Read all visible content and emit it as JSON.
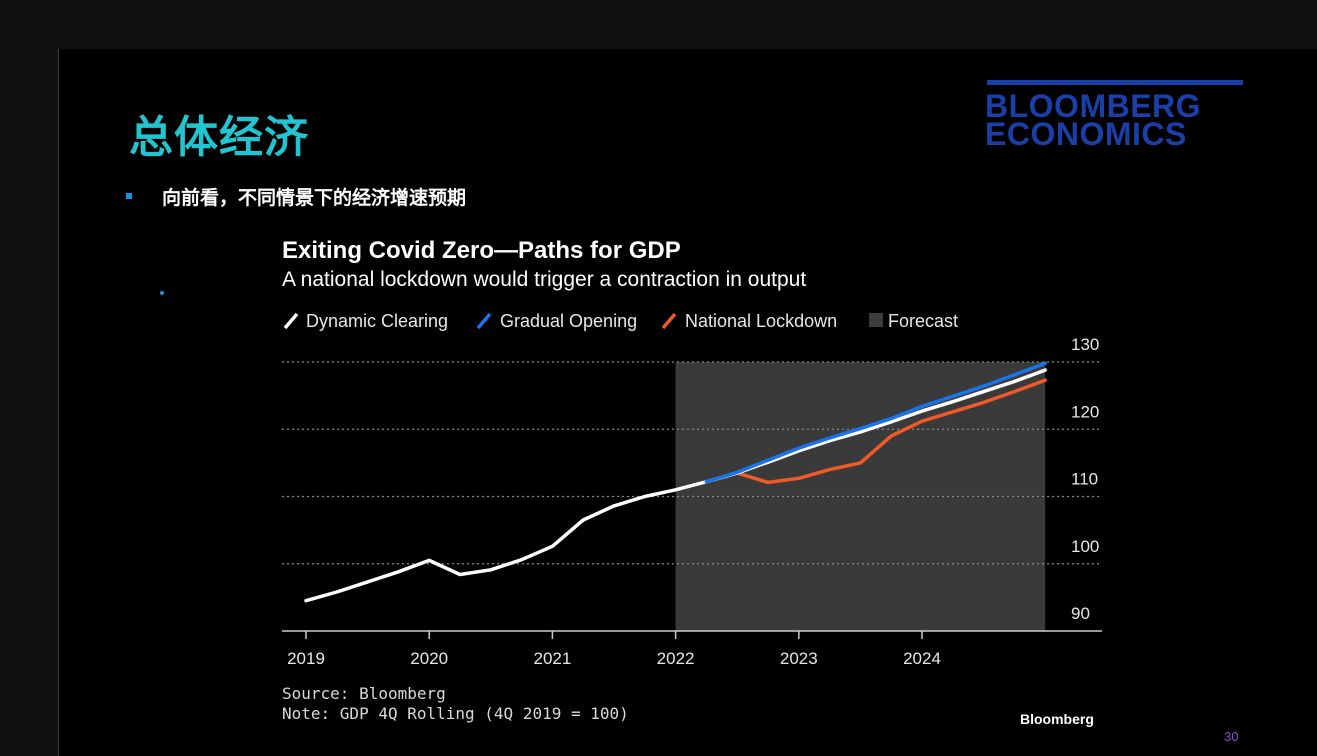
{
  "slide": {
    "title": "总体经济",
    "bullet": "向前看，不同情景下的经济增速预期",
    "page_number": "30",
    "logo_line1": "BLOOMBERG",
    "logo_line2": "ECONOMICS"
  },
  "colors": {
    "title": "#22c4cf",
    "logo": "#1a3fa8",
    "bullet": "#1e8fe0",
    "dynamic_clearing": "#ffffff",
    "gradual_opening": "#1a73e8",
    "national_lockdown": "#f05a28",
    "forecast_shade": "#3a3a3a"
  },
  "chart_data": {
    "type": "line",
    "title": "Exiting Covid Zero—Paths for GDP",
    "subtitle": "A national lockdown would trigger a contraction in output",
    "legend": [
      "Dynamic Clearing",
      "Gradual Opening",
      "National Lockdown",
      "Forecast"
    ],
    "forecast_start": 2022.0,
    "forecast_end": 2025.0,
    "ylim": [
      86,
      130
    ],
    "yticks": [
      90,
      100,
      110,
      120,
      130
    ],
    "xlim": [
      2018.8,
      2025.4
    ],
    "xticks": [
      2019,
      2020,
      2021,
      2022,
      2023,
      2024
    ],
    "y_axis_side": "right",
    "grid": "dotted horizontal",
    "history": {
      "x": [
        2019.0,
        2019.25,
        2019.5,
        2019.75,
        2020.0,
        2020.25,
        2020.5,
        2020.75,
        2021.0,
        2021.25,
        2021.5,
        2021.75,
        2022.0,
        2022.25
      ],
      "y": [
        94.5,
        95.8,
        97.3,
        98.8,
        100.5,
        98.4,
        99.1,
        100.6,
        102.6,
        106.5,
        108.6,
        110.0,
        111.0,
        112.2
      ]
    },
    "series": [
      {
        "name": "Dynamic Clearing",
        "color": "#ffffff",
        "x": [
          2022.25,
          2022.5,
          2022.75,
          2023.0,
          2023.25,
          2023.5,
          2023.75,
          2024.0,
          2024.25,
          2024.5,
          2024.75,
          2025.0
        ],
        "y": [
          112.2,
          113.5,
          115.1,
          116.8,
          118.3,
          119.6,
          121.1,
          122.7,
          124.1,
          125.6,
          127.1,
          128.8
        ]
      },
      {
        "name": "Gradual Opening",
        "color": "#1a73e8",
        "x": [
          2022.25,
          2022.5,
          2022.75,
          2023.0,
          2023.25,
          2023.5,
          2023.75,
          2024.0,
          2024.25,
          2024.5,
          2024.75,
          2025.0
        ],
        "y": [
          112.2,
          113.6,
          115.4,
          117.2,
          118.7,
          120.1,
          121.6,
          123.4,
          124.9,
          126.4,
          128.1,
          129.8
        ]
      },
      {
        "name": "National Lockdown",
        "color": "#f05a28",
        "x": [
          2022.25,
          2022.5,
          2022.75,
          2023.0,
          2023.25,
          2023.5,
          2023.75,
          2024.0,
          2024.25,
          2024.5,
          2024.75,
          2025.0
        ],
        "y": [
          112.2,
          113.5,
          112.1,
          112.7,
          114.0,
          115.0,
          119.0,
          121.2,
          122.6,
          124.0,
          125.6,
          127.3
        ]
      }
    ],
    "source": "Source: Bloomberg",
    "note": "Note: GDP 4Q Rolling (4Q 2019 = 100)",
    "credit": "Bloomberg"
  }
}
